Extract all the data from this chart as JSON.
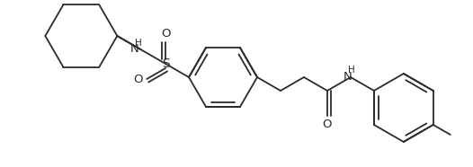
{
  "background_color": "#ffffff",
  "line_color": "#2a2a2a",
  "line_width": 1.3,
  "figsize": [
    5.26,
    1.86
  ],
  "dpi": 100,
  "xlim": [
    0,
    526
  ],
  "ylim": [
    0,
    186
  ]
}
